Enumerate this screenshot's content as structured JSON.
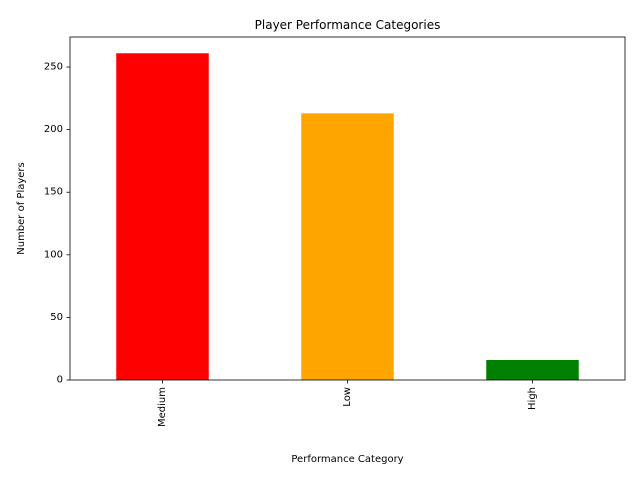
{
  "chart_data": {
    "type": "bar",
    "title": "Player Performance Categories",
    "xlabel": "Performance Category",
    "ylabel": "Number of Players",
    "categories": [
      "Medium",
      "Low",
      "High"
    ],
    "values": [
      261,
      213,
      16
    ],
    "colors": [
      "#ff0000",
      "#ffa500",
      "#008000"
    ],
    "ylim": [
      0,
      274
    ],
    "yticks": [
      0,
      50,
      100,
      150,
      200,
      250
    ],
    "grid": false,
    "legend": "none"
  }
}
